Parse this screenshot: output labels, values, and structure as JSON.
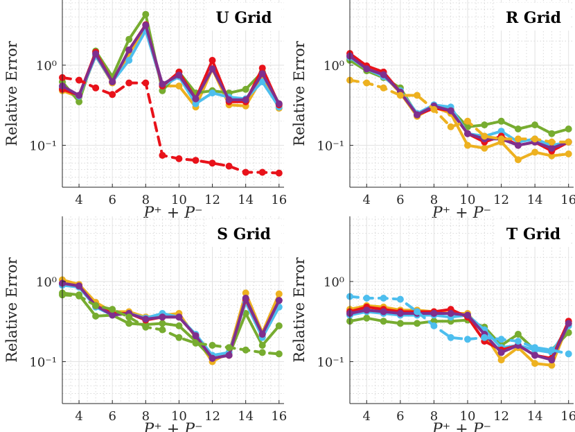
{
  "colors": {
    "blue": "#4DBEEE",
    "red": "#E8121A",
    "yellow": "#EDB120",
    "green": "#77AC30",
    "purple": "#7E2F8E"
  },
  "chart_data": [
    {
      "type": "line",
      "title": "U Grid",
      "xlabel": "P⁺ + P⁻",
      "ylabel": "Relative Error",
      "xlim": [
        3,
        16.3
      ],
      "ylim": [
        0.03,
        6.5
      ],
      "yscale": "log",
      "xticks": [
        "4",
        "6",
        "8",
        "10",
        "12",
        "14",
        "16"
      ],
      "yticks": [
        {
          "label": "10⁰",
          "value": 1
        },
        {
          "label": "10⁻¹",
          "value": 0.1
        }
      ],
      "x": [
        3,
        4,
        5,
        6,
        7,
        8,
        9,
        10,
        11,
        12,
        13,
        14,
        15,
        16
      ],
      "series": [
        {
          "name": "yellow",
          "color": "#EDB120",
          "dashed": false,
          "values": [
            0.48,
            0.4,
            1.3,
            0.6,
            1.4,
            2.9,
            0.55,
            0.55,
            0.3,
            0.9,
            0.32,
            0.31,
            0.7,
            0.29
          ]
        },
        {
          "name": "green",
          "color": "#77AC30",
          "dashed": false,
          "values": [
            0.62,
            0.35,
            1.5,
            0.72,
            2.1,
            4.3,
            0.48,
            0.82,
            0.45,
            0.48,
            0.45,
            0.5,
            0.82,
            0.33
          ]
        },
        {
          "name": "blue",
          "color": "#4DBEEE",
          "dashed": false,
          "values": [
            0.52,
            0.41,
            1.3,
            0.62,
            1.15,
            2.7,
            0.55,
            0.72,
            0.33,
            0.45,
            0.4,
            0.38,
            0.62,
            0.3
          ]
        },
        {
          "name": "red",
          "color": "#E8121A",
          "dashed": false,
          "values": [
            0.5,
            0.42,
            1.45,
            0.62,
            1.55,
            3.2,
            0.55,
            0.82,
            0.38,
            1.15,
            0.35,
            0.35,
            0.92,
            0.32
          ]
        },
        {
          "name": "purple",
          "color": "#7E2F8E",
          "dashed": false,
          "values": [
            0.55,
            0.42,
            1.38,
            0.62,
            1.55,
            3.15,
            0.58,
            0.75,
            0.38,
            0.9,
            0.37,
            0.37,
            0.78,
            0.33
          ]
        },
        {
          "name": "red dashed",
          "color": "#E8121A",
          "dashed": true,
          "values": [
            0.7,
            0.65,
            0.52,
            0.43,
            0.6,
            0.6,
            0.075,
            0.068,
            0.065,
            0.06,
            0.055,
            0.046,
            0.046,
            0.045
          ]
        }
      ]
    },
    {
      "type": "line",
      "title": "R Grid",
      "xlabel": "P⁺ + P⁻",
      "ylabel": "Relative Error",
      "xlim": [
        3,
        16.3
      ],
      "ylim": [
        0.03,
        6.5
      ],
      "yscale": "log",
      "xticks": [
        "4",
        "6",
        "8",
        "10",
        "12",
        "14",
        "16"
      ],
      "yticks": [
        {
          "label": "10⁰",
          "value": 1
        },
        {
          "label": "10⁻¹",
          "value": 0.1
        }
      ],
      "x": [
        3,
        4,
        5,
        6,
        7,
        8,
        9,
        10,
        11,
        12,
        13,
        14,
        15,
        16
      ],
      "series": [
        {
          "name": "yellow",
          "color": "#EDB120",
          "dashed": false,
          "values": [
            1.2,
            0.88,
            0.75,
            0.45,
            0.23,
            0.3,
            0.25,
            0.1,
            0.092,
            0.11,
            0.066,
            0.082,
            0.074,
            0.078
          ]
        },
        {
          "name": "green",
          "color": "#77AC30",
          "dashed": false,
          "values": [
            1.15,
            0.85,
            0.7,
            0.52,
            0.24,
            0.31,
            0.28,
            0.17,
            0.18,
            0.2,
            0.16,
            0.18,
            0.14,
            0.16
          ]
        },
        {
          "name": "blue",
          "color": "#4DBEEE",
          "dashed": false,
          "values": [
            1.25,
            0.9,
            0.72,
            0.48,
            0.25,
            0.32,
            0.3,
            0.14,
            0.13,
            0.15,
            0.11,
            0.12,
            0.1,
            0.11
          ]
        },
        {
          "name": "red",
          "color": "#E8121A",
          "dashed": false,
          "values": [
            1.4,
            0.98,
            0.82,
            0.46,
            0.24,
            0.29,
            0.27,
            0.14,
            0.11,
            0.13,
            0.1,
            0.11,
            0.085,
            0.11
          ]
        },
        {
          "name": "purple",
          "color": "#7E2F8E",
          "dashed": false,
          "values": [
            1.3,
            0.9,
            0.76,
            0.46,
            0.24,
            0.31,
            0.27,
            0.14,
            0.12,
            0.12,
            0.1,
            0.11,
            0.092,
            0.11
          ]
        },
        {
          "name": "yellow dashed",
          "color": "#EDB120",
          "dashed": true,
          "values": [
            0.65,
            0.6,
            0.52,
            0.42,
            0.42,
            0.28,
            0.17,
            0.2,
            0.13,
            0.12,
            0.12,
            0.12,
            0.11,
            0.11
          ]
        }
      ]
    },
    {
      "type": "line",
      "title": "S Grid",
      "xlabel": "P⁺ + P⁻",
      "ylabel": "Relative Error",
      "xlim": [
        3,
        16.3
      ],
      "ylim": [
        0.03,
        6.5
      ],
      "yscale": "log",
      "xticks": [
        "4",
        "6",
        "8",
        "10",
        "12",
        "14",
        "16"
      ],
      "yticks": [
        {
          "label": "10⁰",
          "value": 1
        },
        {
          "label": "10⁻¹",
          "value": 0.1
        }
      ],
      "x": [
        3,
        4,
        5,
        6,
        7,
        8,
        9,
        10,
        11,
        12,
        13,
        14,
        15,
        16
      ],
      "series": [
        {
          "name": "yellow",
          "color": "#EDB120",
          "dashed": false,
          "values": [
            1.05,
            0.92,
            0.55,
            0.42,
            0.42,
            0.36,
            0.38,
            0.4,
            0.2,
            0.1,
            0.13,
            0.72,
            0.23,
            0.7
          ]
        },
        {
          "name": "green",
          "color": "#77AC30",
          "dashed": false,
          "values": [
            0.72,
            0.68,
            0.37,
            0.38,
            0.3,
            0.29,
            0.3,
            0.28,
            0.18,
            0.11,
            0.12,
            0.4,
            0.16,
            0.28
          ]
        },
        {
          "name": "blue",
          "color": "#4DBEEE",
          "dashed": false,
          "values": [
            0.9,
            0.85,
            0.48,
            0.38,
            0.4,
            0.35,
            0.4,
            0.36,
            0.22,
            0.12,
            0.13,
            0.55,
            0.2,
            0.48
          ]
        },
        {
          "name": "red",
          "color": "#E8121A",
          "dashed": false,
          "values": [
            0.95,
            0.88,
            0.5,
            0.4,
            0.4,
            0.33,
            0.36,
            0.36,
            0.21,
            0.11,
            0.12,
            0.6,
            0.22,
            0.58
          ]
        },
        {
          "name": "purple",
          "color": "#7E2F8E",
          "dashed": false,
          "values": [
            0.95,
            0.88,
            0.5,
            0.38,
            0.4,
            0.34,
            0.36,
            0.36,
            0.21,
            0.11,
            0.12,
            0.62,
            0.22,
            0.58
          ]
        },
        {
          "name": "green dashed",
          "color": "#77AC30",
          "dashed": true,
          "values": [
            0.68,
            0.66,
            0.5,
            0.45,
            0.36,
            0.27,
            0.25,
            0.2,
            0.17,
            0.16,
            0.15,
            0.14,
            0.13,
            0.125
          ]
        }
      ]
    },
    {
      "type": "line",
      "title": "T Grid",
      "xlabel": "P⁺ + P⁻",
      "ylabel": "Relative Error",
      "xlim": [
        3,
        16.3
      ],
      "ylim": [
        0.03,
        6.5
      ],
      "yscale": "log",
      "xticks": [
        "4",
        "6",
        "8",
        "10",
        "12",
        "14",
        "16"
      ],
      "yticks": [
        {
          "label": "10⁰",
          "value": 1
        },
        {
          "label": "10⁻¹",
          "value": 0.1
        }
      ],
      "x": [
        3,
        4,
        5,
        6,
        7,
        8,
        9,
        10,
        11,
        12,
        13,
        14,
        15,
        16
      ],
      "series": [
        {
          "name": "yellow",
          "color": "#EDB120",
          "dashed": false,
          "values": [
            0.45,
            0.5,
            0.48,
            0.44,
            0.44,
            0.42,
            0.4,
            0.4,
            0.22,
            0.105,
            0.15,
            0.095,
            0.09,
            0.3
          ]
        },
        {
          "name": "green",
          "color": "#77AC30",
          "dashed": false,
          "values": [
            0.32,
            0.35,
            0.32,
            0.3,
            0.3,
            0.32,
            0.32,
            0.33,
            0.27,
            0.16,
            0.22,
            0.14,
            0.14,
            0.23
          ]
        },
        {
          "name": "blue",
          "color": "#4DBEEE",
          "dashed": false,
          "values": [
            0.38,
            0.42,
            0.4,
            0.38,
            0.38,
            0.38,
            0.36,
            0.38,
            0.25,
            0.15,
            0.16,
            0.14,
            0.13,
            0.28
          ]
        },
        {
          "name": "red",
          "color": "#E8121A",
          "dashed": false,
          "values": [
            0.42,
            0.48,
            0.45,
            0.42,
            0.42,
            0.42,
            0.45,
            0.36,
            0.18,
            0.14,
            0.16,
            0.12,
            0.11,
            0.32
          ]
        },
        {
          "name": "purple",
          "color": "#7E2F8E",
          "dashed": false,
          "values": [
            0.4,
            0.44,
            0.42,
            0.4,
            0.4,
            0.4,
            0.4,
            0.38,
            0.22,
            0.13,
            0.16,
            0.12,
            0.105,
            0.3
          ]
        },
        {
          "name": "blue dashed",
          "color": "#4DBEEE",
          "dashed": true,
          "values": [
            0.65,
            0.62,
            0.62,
            0.6,
            0.42,
            0.28,
            0.2,
            0.19,
            0.2,
            0.19,
            0.18,
            0.15,
            0.14,
            0.125
          ]
        }
      ]
    }
  ]
}
